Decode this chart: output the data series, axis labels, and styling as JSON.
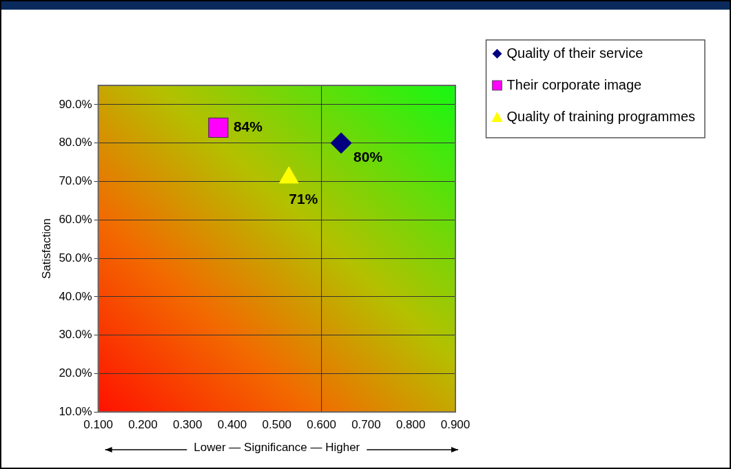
{
  "chart_data": {
    "type": "scatter",
    "xlabel": "Lower — Significance — Higher",
    "ylabel": "Satisfaction",
    "xlim": [
      0.1,
      0.9
    ],
    "xticks": [
      {
        "value": 0.1,
        "label": "0.100"
      },
      {
        "value": 0.2,
        "label": "0.200"
      },
      {
        "value": 0.3,
        "label": "0.300"
      },
      {
        "value": 0.4,
        "label": "0.400"
      },
      {
        "value": 0.5,
        "label": "0.500"
      },
      {
        "value": 0.6,
        "label": "0.600"
      },
      {
        "value": 0.7,
        "label": "0.700"
      },
      {
        "value": 0.8,
        "label": "0.800"
      },
      {
        "value": 0.9,
        "label": "0.900"
      }
    ],
    "ylim": [
      10,
      95
    ],
    "yticks": [
      {
        "value": 10,
        "label": "10.0%"
      },
      {
        "value": 20,
        "label": "20.0%"
      },
      {
        "value": 30,
        "label": "30.0%"
      },
      {
        "value": 40,
        "label": "40.0%"
      },
      {
        "value": 50,
        "label": "50.0%"
      },
      {
        "value": 60,
        "label": "60.0%"
      },
      {
        "value": 70,
        "label": "70.0%"
      },
      {
        "value": 80,
        "label": "80.0%"
      },
      {
        "value": 90,
        "label": "90.0%"
      }
    ],
    "grid": "y",
    "legend": "top right",
    "ref_lines": [
      {
        "axis": "x",
        "value": 0.6,
        "color": "#333333"
      }
    ],
    "series": [
      {
        "name": "Quality of their service",
        "color": "#000080",
        "marker": "diamond",
        "x": [
          0.644
        ],
        "values": [
          80
        ],
        "value_labels": [
          "80%"
        ]
      },
      {
        "name": "Their corporate image",
        "color": "#ff00ff",
        "marker": "square",
        "x": [
          0.369
        ],
        "values": [
          84
        ],
        "value_labels": [
          "84%"
        ]
      },
      {
        "name": "Quality of training programmes",
        "color": "#ffff00",
        "marker": "triangle",
        "x": [
          0.527
        ],
        "values": [
          71
        ],
        "value_labels": [
          "71%"
        ]
      }
    ]
  }
}
